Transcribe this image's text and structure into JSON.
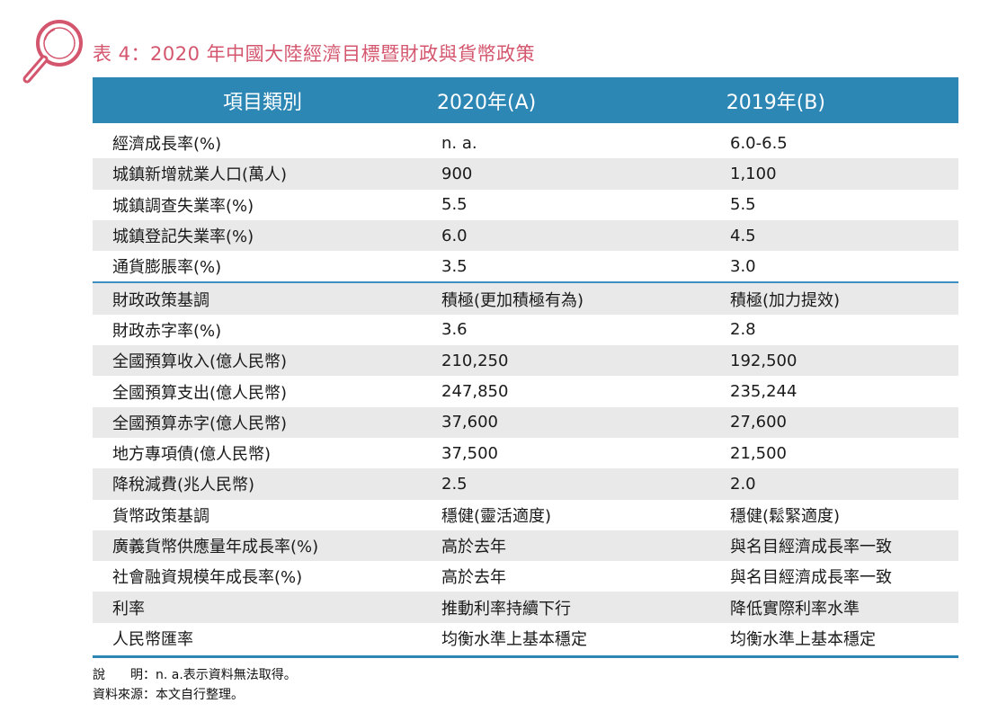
{
  "title": "表 4：2020 年中國大陸經濟目標暨財政與貨幣政策",
  "header": {
    "col1": "項目類別",
    "col2": "2020年(A)",
    "col3": "2019年(B)"
  },
  "group1": [
    {
      "item": "經濟成長率(%)",
      "y2020": "n. a.",
      "y2019": "6.0-6.5"
    },
    {
      "item": "城鎮新增就業人口(萬人)",
      "y2020": "900",
      "y2019": "1,100"
    },
    {
      "item": "城鎮調查失業率(%)",
      "y2020": "5.5",
      "y2019": "5.5"
    },
    {
      "item": "城鎮登記失業率(%)",
      "y2020": "6.0",
      "y2019": "4.5"
    },
    {
      "item": "通貨膨脹率(%)",
      "y2020": "3.5",
      "y2019": "3.0"
    }
  ],
  "group2": [
    {
      "item": "財政政策基調",
      "y2020": "積極(更加積極有為)",
      "y2019": "積極(加力提效)"
    },
    {
      "item": "財政赤字率(%)",
      "y2020": "3.6",
      "y2019": "2.8"
    },
    {
      "item": "全國預算收入(億人民幣)",
      "y2020": "210,250",
      "y2019": "192,500"
    },
    {
      "item": "全國預算支出(億人民幣)",
      "y2020": "247,850",
      "y2019": "235,244"
    },
    {
      "item": "全國預算赤字(億人民幣)",
      "y2020": "37,600",
      "y2019": "27,600"
    },
    {
      "item": "地方專項債(億人民幣)",
      "y2020": "37,500",
      "y2019": "21,500"
    },
    {
      "item": "降稅減費(兆人民幣)",
      "y2020": "2.5",
      "y2019": "2.0"
    },
    {
      "item": "貨幣政策基調",
      "y2020": "穩健(靈活適度)",
      "y2019": "穩健(鬆緊適度)"
    },
    {
      "item": "廣義貨幣供應量年成長率(%)",
      "y2020": "高於去年",
      "y2019": "與名目經濟成長率一致"
    },
    {
      "item": "社會融資規模年成長率(%)",
      "y2020": "高於去年",
      "y2019": "與名目經濟成長率一致"
    },
    {
      "item": "利率",
      "y2020": "推動利率持續下行",
      "y2019": "降低實際利率水準"
    },
    {
      "item": "人民幣匯率",
      "y2020": "均衡水準上基本穩定",
      "y2019": "均衡水準上基本穩定"
    }
  ],
  "notes": {
    "note_label": "說　　明：",
    "note_text": "n. a.表示資料無法取得。",
    "source_label": "資料來源：",
    "source_text": "本文自行整理。"
  },
  "colors": {
    "title": "#d4566e",
    "header_bg": "#2c87b5",
    "stripe": "#e9e9e9",
    "icon": "#d4566e"
  },
  "icon": "magnifier-icon"
}
